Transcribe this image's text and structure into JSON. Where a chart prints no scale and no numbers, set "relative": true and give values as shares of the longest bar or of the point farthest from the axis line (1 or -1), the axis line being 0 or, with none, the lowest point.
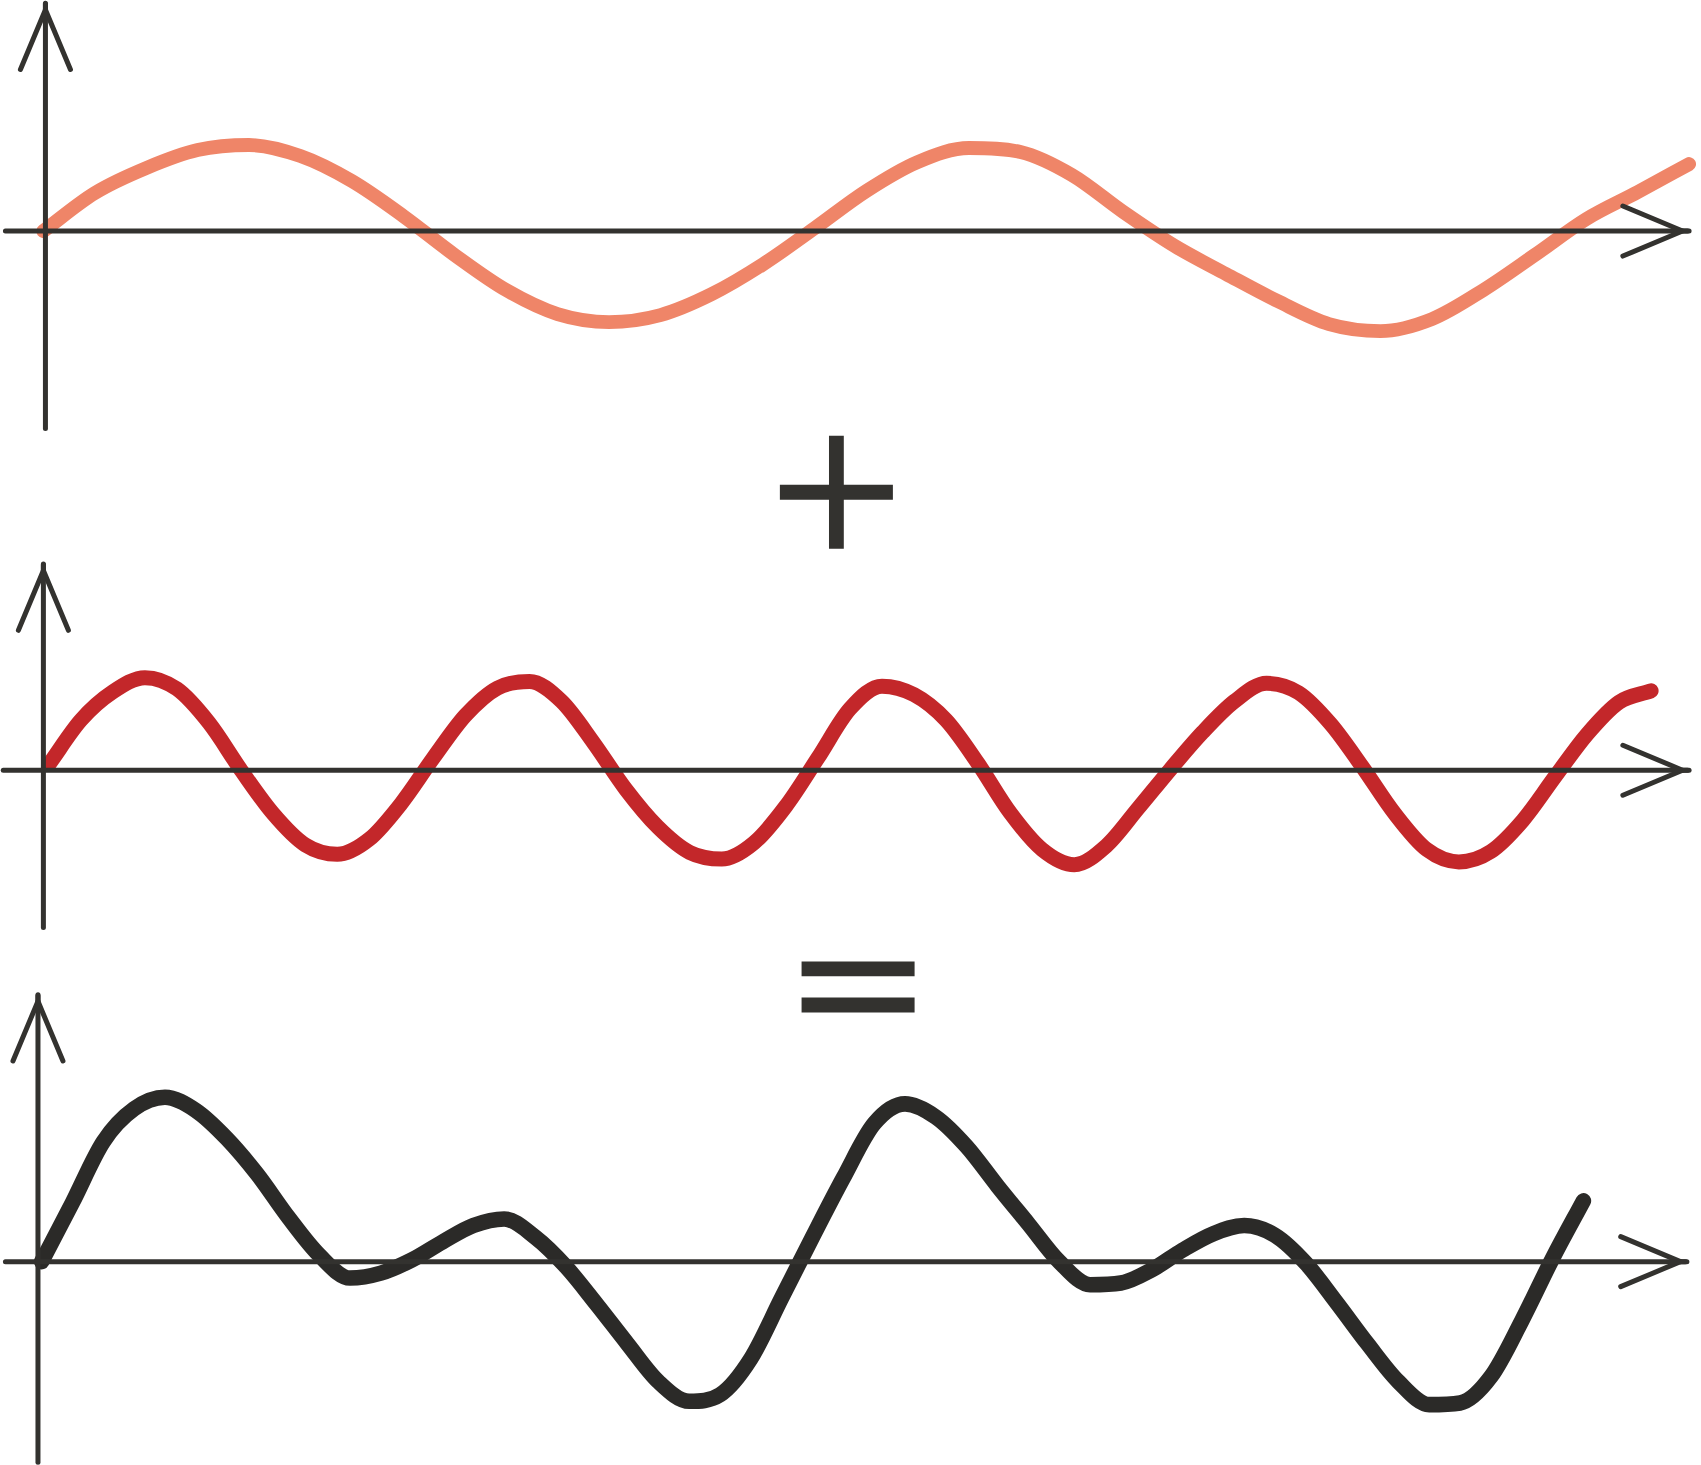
{
  "chart_data": [
    {
      "type": "line",
      "relative": true,
      "categories": [
        null,
        null,
        null,
        null,
        null,
        null,
        null,
        null,
        null,
        null,
        null,
        null,
        null,
        null,
        null,
        null,
        null,
        null,
        null,
        null,
        null,
        null,
        null,
        null,
        null,
        null,
        null,
        null,
        null,
        null,
        null,
        null,
        null
      ],
      "series": [
        {
          "color": "#ef8568",
          "values": [
            0,
            0.38,
            0.63,
            0.81,
            0.86,
            0.75,
            0.5,
            0.15,
            -0.24,
            -0.59,
            -0.83,
            -0.91,
            -0.84,
            -0.63,
            -0.33,
            0.03,
            0.4,
            0.69,
            0.83,
            0.79,
            0.56,
            0.19,
            -0.15,
            -0.43,
            -0.7,
            -0.93,
            -1.0,
            -0.88,
            -0.59,
            -0.24,
            0.12,
            0.39,
            0.67
          ]
        }
      ],
      "annotations": [
        "+"
      ]
    },
    {
      "type": "line",
      "relative": true,
      "categories": [
        null,
        null,
        null,
        null,
        null,
        null,
        null,
        null,
        null,
        null,
        null,
        null,
        null,
        null,
        null,
        null,
        null,
        null,
        null,
        null,
        null,
        null,
        null,
        null,
        null,
        null,
        null,
        null,
        null,
        null,
        null,
        null,
        null,
        null,
        null,
        null,
        null,
        null,
        null,
        null,
        null,
        null,
        null,
        null,
        null,
        null,
        null,
        null,
        null,
        null,
        null
      ],
      "series": [
        {
          "color": "#c3272a",
          "values": [
            0.06,
            0.53,
            0.83,
            0.98,
            0.86,
            0.5,
            0.0,
            -0.46,
            -0.79,
            -0.89,
            -0.73,
            -0.35,
            0.13,
            0.58,
            0.87,
            0.94,
            0.73,
            0.29,
            -0.2,
            -0.6,
            -0.87,
            -0.94,
            -0.77,
            -0.38,
            0.13,
            0.65,
            0.89,
            0.8,
            0.53,
            0.07,
            -0.45,
            -0.84,
            -1.0,
            -0.8,
            -0.4,
            0.01,
            0.4,
            0.73,
            0.92,
            0.82,
            0.49,
            0.03,
            -0.46,
            -0.84,
            -0.97,
            -0.86,
            -0.53,
            -0.07,
            0.38,
            0.72,
            0.84
          ]
        }
      ],
      "annotations": [
        "="
      ]
    },
    {
      "type": "line",
      "relative": true,
      "categories": [
        null,
        null,
        null,
        null,
        null,
        null,
        null,
        null,
        null,
        null,
        null,
        null,
        null,
        null,
        null,
        null,
        null,
        null,
        null,
        null,
        null,
        null,
        null,
        null,
        null,
        null,
        null,
        null,
        null,
        null,
        null,
        null,
        null,
        null,
        null,
        null,
        null,
        null,
        null,
        null,
        null,
        null,
        null,
        null,
        null,
        null,
        null,
        null,
        null,
        null,
        null
      ],
      "series": [
        {
          "color": "#2b2a28",
          "values": [
            0,
            0.36,
            0.73,
            0.93,
            1.0,
            0.92,
            0.75,
            0.53,
            0.27,
            0.04,
            -0.1,
            -0.07,
            0.01,
            0.12,
            0.22,
            0.26,
            0.15,
            -0.03,
            -0.26,
            -0.5,
            -0.73,
            -0.85,
            -0.81,
            -0.59,
            -0.22,
            0.15,
            0.51,
            0.84,
            0.96,
            0.88,
            0.7,
            0.46,
            0.23,
            0.0,
            -0.14,
            -0.13,
            -0.05,
            0.07,
            0.17,
            0.22,
            0.16,
            -0.01,
            -0.25,
            -0.5,
            -0.73,
            -0.87,
            -0.86,
            -0.7,
            -0.36,
            0.02,
            0.37
          ]
        }
      ]
    }
  ]
}
